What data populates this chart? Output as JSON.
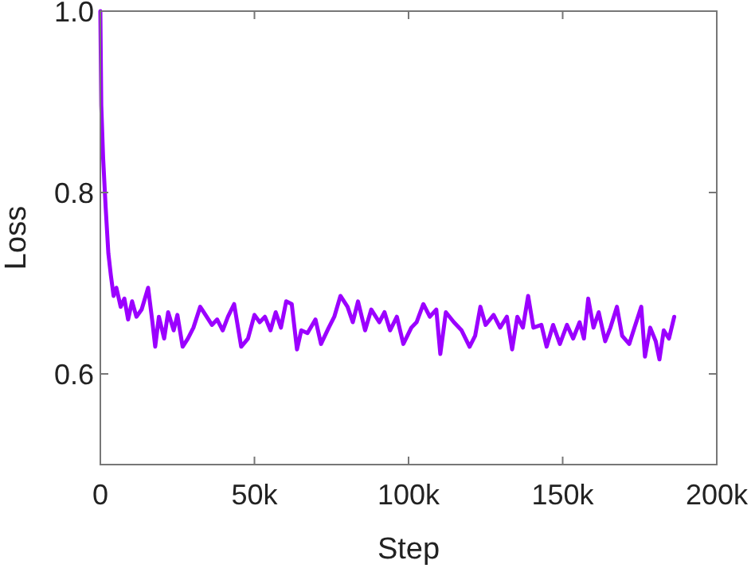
{
  "chart_data": {
    "type": "line",
    "xlabel": "Step",
    "ylabel": "Loss",
    "xlim": [
      0,
      200000
    ],
    "ylim": [
      0.5,
      1.0
    ],
    "xticks": [
      {
        "value": 0,
        "label": "0"
      },
      {
        "value": 50000,
        "label": "50k"
      },
      {
        "value": 100000,
        "label": "100k"
      },
      {
        "value": 150000,
        "label": "150k"
      },
      {
        "value": 200000,
        "label": "200k"
      }
    ],
    "yticks": [
      {
        "value": 0.6,
        "label": "0.6"
      },
      {
        "value": 0.8,
        "label": "0.8"
      },
      {
        "value": 1.0,
        "label": "1.0"
      }
    ],
    "grid": false,
    "line_style": "solid",
    "series": [
      {
        "color": "#9b00ff",
        "x": [
          0,
          300,
          900,
          1700,
          2600,
          3400,
          4300,
          5200,
          6600,
          7800,
          9000,
          10300,
          11700,
          13400,
          15500,
          16900,
          17800,
          19000,
          20700,
          22000,
          23800,
          25000,
          26700,
          28400,
          30200,
          32400,
          34500,
          36200,
          37900,
          39700,
          41400,
          43400,
          45700,
          47900,
          50000,
          51700,
          53400,
          55200,
          56900,
          58600,
          60300,
          62100,
          63800,
          65200,
          67200,
          69800,
          71600,
          74100,
          75900,
          77900,
          80200,
          81900,
          83600,
          85900,
          87900,
          90500,
          92200,
          94000,
          96200,
          98300,
          100900,
          102600,
          104800,
          106900,
          109000,
          110300,
          112100,
          114700,
          117200,
          119800,
          121600,
          123300,
          125000,
          127600,
          129700,
          131900,
          133600,
          135300,
          137100,
          138800,
          140500,
          143100,
          144800,
          146900,
          149100,
          151400,
          153400,
          155500,
          156900,
          158300,
          160000,
          161700,
          163800,
          165500,
          167600,
          169300,
          171600,
          173300,
          175500,
          176700,
          178400,
          180200,
          181400,
          182800,
          184500,
          186200
        ],
        "values": [
          1.0,
          0.896,
          0.838,
          0.785,
          0.733,
          0.709,
          0.686,
          0.695,
          0.674,
          0.683,
          0.66,
          0.68,
          0.663,
          0.671,
          0.695,
          0.657,
          0.63,
          0.663,
          0.639,
          0.668,
          0.648,
          0.665,
          0.63,
          0.639,
          0.651,
          0.674,
          0.663,
          0.654,
          0.66,
          0.648,
          0.663,
          0.677,
          0.63,
          0.639,
          0.665,
          0.657,
          0.663,
          0.648,
          0.668,
          0.651,
          0.68,
          0.677,
          0.627,
          0.648,
          0.645,
          0.66,
          0.633,
          0.651,
          0.663,
          0.686,
          0.674,
          0.657,
          0.68,
          0.648,
          0.671,
          0.657,
          0.668,
          0.648,
          0.663,
          0.633,
          0.651,
          0.657,
          0.677,
          0.663,
          0.671,
          0.622,
          0.668,
          0.657,
          0.648,
          0.63,
          0.642,
          0.674,
          0.654,
          0.665,
          0.651,
          0.663,
          0.627,
          0.663,
          0.651,
          0.686,
          0.651,
          0.654,
          0.63,
          0.654,
          0.633,
          0.654,
          0.639,
          0.657,
          0.639,
          0.683,
          0.651,
          0.668,
          0.636,
          0.651,
          0.674,
          0.642,
          0.633,
          0.651,
          0.674,
          0.619,
          0.651,
          0.636,
          0.616,
          0.648,
          0.639,
          0.663
        ]
      }
    ]
  }
}
